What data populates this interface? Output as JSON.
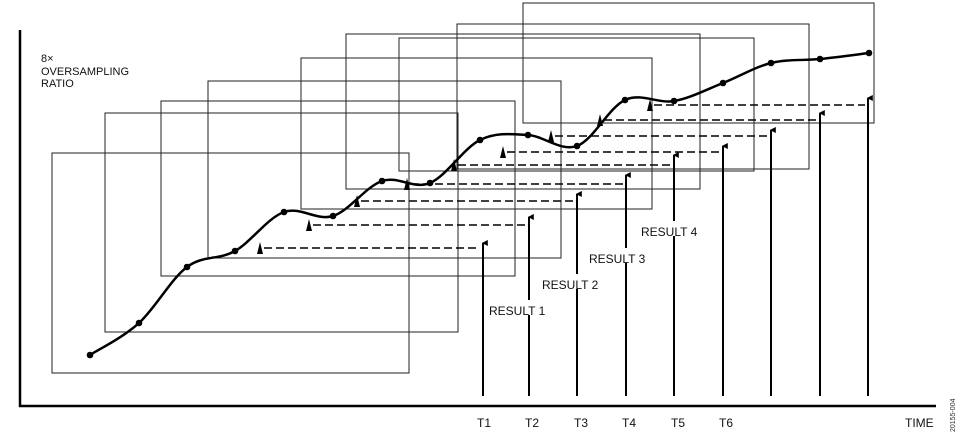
{
  "y_axis_label": [
    "8×",
    "OVERSAMPLING",
    "RATIO"
  ],
  "x_axis_label": "TIME",
  "time_ticks": [
    "T1",
    "T2",
    "T3",
    "T4",
    "T5",
    "T6"
  ],
  "results": [
    "RESULT 1",
    "RESULT 2",
    "RESULT 3",
    "RESULT 4"
  ],
  "figure_code": "20155-004"
}
